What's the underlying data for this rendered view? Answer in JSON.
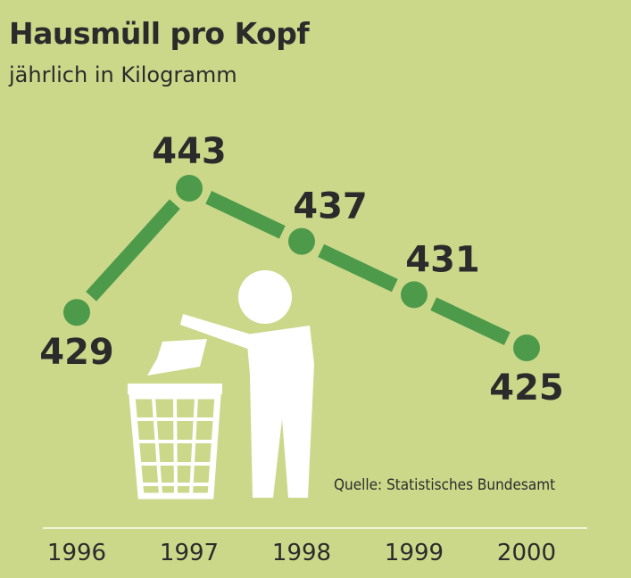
{
  "title": "Hausmüll pro Kopf",
  "subtitle": "jährlich in Kilogramm",
  "source": "Quelle: Statistisches Bundesamt",
  "colors": {
    "background": "#cbd88a",
    "line": "#4e9a4b",
    "text": "#2b2b2b",
    "pictogram": "#ffffff"
  },
  "icons": [
    "trash-bin-pictogram"
  ],
  "chart_data": {
    "type": "line",
    "categories": [
      "1996",
      "1997",
      "1998",
      "1999",
      "2000"
    ],
    "values": [
      429,
      443,
      437,
      431,
      425
    ],
    "title": "Hausmüll pro Kopf",
    "subtitle": "jährlich in Kilogramm",
    "xlabel": "",
    "ylabel": "",
    "grid": false,
    "source": "Quelle: Statistisches Bundesamt"
  }
}
